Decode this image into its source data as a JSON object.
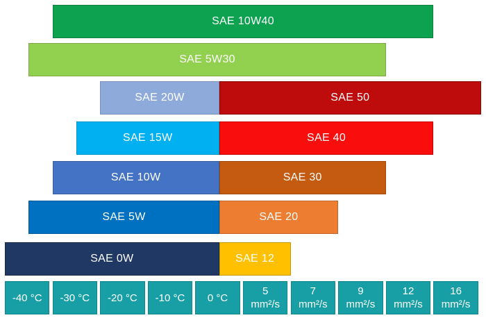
{
  "page": {
    "background": "#FFFFFF"
  },
  "chart_data": {
    "type": "bar",
    "orientation": "horizontal-span",
    "title": "",
    "grid": false,
    "legend": "none",
    "label_color": "#FFFFFF",
    "x_axis": {
      "columns": 10,
      "temperature_ticks_c": [
        -40,
        -30,
        -20,
        -10,
        0
      ],
      "viscosity_ticks_mm2_s": [
        5,
        7,
        9,
        12,
        16
      ],
      "color": "#189FA6",
      "border_color": "#0F868C",
      "text_color": "#FFFFFF",
      "cells": [
        {
          "name": "temp-minus-40",
          "lines": [
            "-40 °C"
          ]
        },
        {
          "name": "temp-minus-30",
          "lines": [
            "-30 °C"
          ]
        },
        {
          "name": "temp-minus-20",
          "lines": [
            "-20 °C"
          ]
        },
        {
          "name": "temp-minus-10",
          "lines": [
            "-10 °C"
          ]
        },
        {
          "name": "temp-0",
          "lines": [
            "0 °C"
          ]
        },
        {
          "name": "visc-5-mm2s",
          "lines": [
            "5",
            "mm²/s"
          ]
        },
        {
          "name": "visc-7-mm2s",
          "lines": [
            "7",
            "mm²/s"
          ]
        },
        {
          "name": "visc-9-mm2s",
          "lines": [
            "9",
            "mm²/s"
          ]
        },
        {
          "name": "visc-12-mm2s",
          "lines": [
            "12",
            "mm²/s"
          ]
        },
        {
          "name": "visc-16-mm2s",
          "lines": [
            "16",
            "mm²/s"
          ]
        }
      ]
    },
    "rows": [
      {
        "bars": [
          {
            "name": "bar-sae-10w40",
            "label": "SAE 10W40",
            "color": "#0CA24F",
            "border_color": "#0A7F3E",
            "col_start": 1.0,
            "col_end": 9.0
          }
        ]
      },
      {
        "bars": [
          {
            "name": "bar-sae-5w30",
            "label": "SAE 5W30",
            "color": "#92D050",
            "border_color": "#7FA845",
            "col_start": 0.5,
            "col_end": 8.0
          }
        ]
      },
      {
        "bars": [
          {
            "name": "bar-sae-20w",
            "label": "SAE 20W",
            "color": "#8EAADB",
            "border_color": "#7B8FB8",
            "col_start": 2.0,
            "col_end": 4.5
          },
          {
            "name": "bar-sae-50",
            "label": "SAE 50",
            "color": "#BE0B0B",
            "border_color": "#8F0808",
            "col_start": 4.5,
            "col_end": 10.0
          }
        ]
      },
      {
        "bars": [
          {
            "name": "bar-sae-15w",
            "label": "SAE 15W",
            "color": "#00B0F0",
            "border_color": "#0092C8",
            "col_start": 1.5,
            "col_end": 4.5
          },
          {
            "name": "bar-sae-40",
            "label": "SAE 40",
            "color": "#FA0D0D",
            "border_color": "#C40000",
            "col_start": 4.5,
            "col_end": 9.0
          }
        ]
      },
      {
        "bars": [
          {
            "name": "bar-sae-10w",
            "label": "SAE 10W",
            "color": "#4472C4",
            "border_color": "#38609F",
            "col_start": 1.0,
            "col_end": 4.5
          },
          {
            "name": "bar-sae-30",
            "label": "SAE 30",
            "color": "#C55A11",
            "border_color": "#9E480E",
            "col_start": 4.5,
            "col_end": 8.0
          }
        ]
      },
      {
        "bars": [
          {
            "name": "bar-sae-5w",
            "label": "SAE 5W",
            "color": "#0070C0",
            "border_color": "#005B9E",
            "col_start": 0.5,
            "col_end": 4.5
          },
          {
            "name": "bar-sae-20",
            "label": "SAE 20",
            "color": "#ED7D31",
            "border_color": "#C26428",
            "col_start": 4.5,
            "col_end": 7.0
          }
        ]
      },
      {
        "bars": [
          {
            "name": "bar-sae-0w",
            "label": "SAE 0W",
            "color": "#1F3864",
            "border_color": "#16294A",
            "col_start": 0.0,
            "col_end": 4.5
          },
          {
            "name": "bar-sae-12",
            "label": "SAE 12",
            "color": "#FFC000",
            "border_color": "#C99700",
            "col_start": 4.5,
            "col_end": 6.0
          }
        ]
      }
    ]
  }
}
